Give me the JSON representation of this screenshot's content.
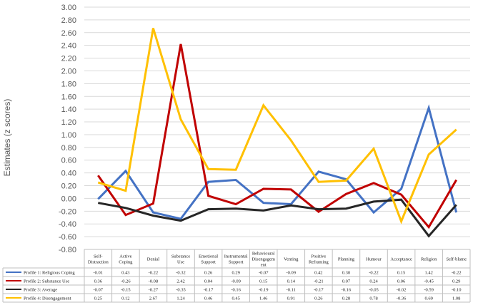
{
  "chart_data": {
    "type": "line",
    "title": "",
    "xlabel": "",
    "ylabel": "Estimates (z scores)",
    "ylim": [
      -0.8,
      3.0
    ],
    "yticks": [
      "3.00",
      "2.80",
      "2.60",
      "2.40",
      "2.20",
      "2.00",
      "1.80",
      "1.60",
      "1.40",
      "1.20",
      "1.00",
      "0.80",
      "0.60",
      "0.40",
      "0.20",
      "0.00",
      "-0.20",
      "-0.40",
      "-0.60",
      "-0.80"
    ],
    "grid": true,
    "legend_placement": "data table below chart",
    "categories": [
      [
        "Self-",
        "Distraction"
      ],
      [
        "Active",
        "Coping"
      ],
      [
        "Denial"
      ],
      [
        "Substance",
        "Use"
      ],
      [
        "Emotional",
        "Support"
      ],
      [
        "Instrumental",
        "Support"
      ],
      [
        "Behavioural",
        "Disengagem",
        "ent"
      ],
      [
        "Venting"
      ],
      [
        "Positive",
        "Reframing"
      ],
      [
        "Planning"
      ],
      [
        "Humour"
      ],
      [
        "Acceptance"
      ],
      [
        "Religion"
      ],
      [
        "Self-blame"
      ]
    ],
    "series": [
      {
        "name": "Profile 1: Religious Coping",
        "color": "#4472c4",
        "values": [
          -0.01,
          0.43,
          -0.22,
          -0.32,
          0.26,
          0.29,
          -0.07,
          -0.09,
          0.42,
          0.3,
          -0.22,
          0.15,
          1.42,
          -0.22
        ],
        "labels": [
          "-0.01",
          "0.43",
          "-0.22",
          "-0.32",
          "0.26",
          "0.29",
          "-0.07",
          "-0.09",
          "0.42",
          "0.30",
          "-0.22",
          "0.15",
          "1.42",
          "-0.22"
        ]
      },
      {
        "name": "Profile 2: Substance Use",
        "color": "#c00000",
        "values": [
          0.36,
          -0.26,
          -0.08,
          2.42,
          0.04,
          -0.09,
          0.15,
          0.14,
          -0.21,
          0.07,
          0.24,
          0.06,
          -0.45,
          0.29
        ],
        "labels": [
          "0.36",
          "-0.26",
          "-0.08",
          "2.42",
          "0.04",
          "-0.09",
          "0.15",
          "0.14",
          "-0.21",
          "0.07",
          "0.24",
          "0.06",
          "-0.45",
          "0.29"
        ]
      },
      {
        "name": "Profile 3: Average",
        "color": "#262626",
        "values": [
          -0.07,
          -0.15,
          -0.27,
          -0.35,
          -0.17,
          -0.16,
          -0.19,
          -0.11,
          -0.17,
          -0.16,
          -0.05,
          -0.02,
          -0.59,
          -0.1
        ],
        "labels": [
          "-0.07",
          "-0.15",
          "-0.27",
          "-0.35",
          "-0.17",
          "-0.16",
          "-0.19",
          "-0.11",
          "-0.17",
          "-0.16",
          "-0.05",
          "-0.02",
          "-0.59",
          "-0.10"
        ]
      },
      {
        "name": "Profile 4: Disengagement",
        "color": "#ffc000",
        "values": [
          0.25,
          0.12,
          2.67,
          1.24,
          0.46,
          0.45,
          1.46,
          0.91,
          0.26,
          0.28,
          0.78,
          -0.36,
          0.69,
          1.08
        ],
        "labels": [
          "0.25",
          "0.12",
          "2.67",
          "1.24",
          "0.46",
          "0.45",
          "1.46",
          "0.91",
          "0.26",
          "0.28",
          "0.78",
          "-0.36",
          "0.69",
          "1.08"
        ]
      }
    ]
  }
}
